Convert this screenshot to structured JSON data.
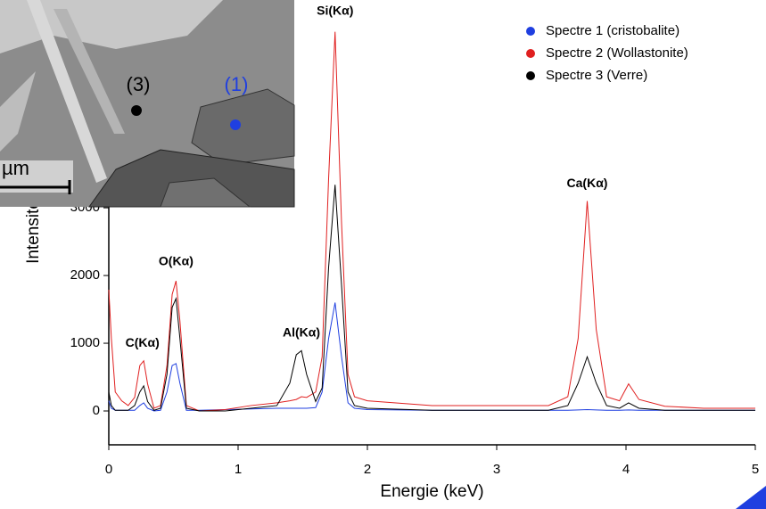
{
  "chart_data": {
    "type": "line",
    "xlabel": "Energie (keV)",
    "ylabel": "Intensité",
    "x": [
      0,
      0.02,
      0.05,
      0.1,
      0.15,
      0.2,
      0.24,
      0.27,
      0.3,
      0.35,
      0.4,
      0.45,
      0.49,
      0.52,
      0.55,
      0.6,
      0.7,
      0.9,
      1.1,
      1.3,
      1.4,
      1.45,
      1.49,
      1.53,
      1.6,
      1.65,
      1.7,
      1.75,
      1.8,
      1.85,
      1.9,
      2.0,
      2.5,
      3.0,
      3.4,
      3.55,
      3.63,
      3.7,
      3.77,
      3.85,
      3.95,
      4.02,
      4.1,
      4.3,
      4.6,
      5.0
    ],
    "series": [
      {
        "name": "Spectre 1 (cristobalite)",
        "color": "#1f3fe0",
        "values": [
          150,
          40,
          10,
          10,
          10,
          10,
          80,
          120,
          40,
          0,
          10,
          280,
          670,
          700,
          410,
          10,
          10,
          20,
          30,
          40,
          40,
          40,
          40,
          40,
          50,
          280,
          1070,
          1600,
          800,
          120,
          40,
          20,
          10,
          10,
          10,
          10,
          15,
          20,
          15,
          10,
          10,
          15,
          10,
          10,
          10,
          10
        ]
      },
      {
        "name": "Spectre 2 (Wollastonite)",
        "color": "#e02020",
        "values": [
          1790,
          1070,
          280,
          150,
          80,
          200,
          670,
          740,
          400,
          40,
          80,
          670,
          1720,
          1920,
          1330,
          80,
          0,
          20,
          80,
          120,
          150,
          170,
          210,
          200,
          280,
          800,
          3430,
          5600,
          2780,
          540,
          210,
          150,
          80,
          80,
          80,
          210,
          1070,
          3100,
          1200,
          210,
          150,
          400,
          170,
          70,
          40,
          40
        ]
      },
      {
        "name": "Spectre 3 (Verre)",
        "color": "#000000",
        "values": [
          280,
          80,
          10,
          10,
          10,
          80,
          280,
          370,
          140,
          10,
          40,
          540,
          1530,
          1660,
          1070,
          40,
          0,
          0,
          40,
          80,
          410,
          830,
          890,
          540,
          140,
          340,
          2120,
          3340,
          1860,
          280,
          80,
          40,
          10,
          10,
          10,
          80,
          410,
          800,
          410,
          80,
          40,
          120,
          40,
          10,
          10,
          10
        ]
      }
    ],
    "xlim": [
      0,
      5
    ],
    "xticks": [
      0,
      1,
      2,
      3,
      4,
      5
    ],
    "ylim": [
      -500,
      5700
    ],
    "yticks": [
      0,
      1000,
      2000,
      3000
    ],
    "annotations": [
      {
        "text": "C(Kα)",
        "x": 0.26,
        "y": 1000
      },
      {
        "text": "O(Kα)",
        "x": 0.52,
        "y": 2200
      },
      {
        "text": "Al(Kα)",
        "x": 1.49,
        "y": 1150
      },
      {
        "text": "Si(Kα)",
        "x": 1.75,
        "y": 5900
      },
      {
        "text": "Ca(Kα)",
        "x": 3.7,
        "y": 3350
      }
    ],
    "legend": "top-right"
  },
  "inset": {
    "labels": [
      "(3)",
      "(1)",
      "µm"
    ]
  }
}
